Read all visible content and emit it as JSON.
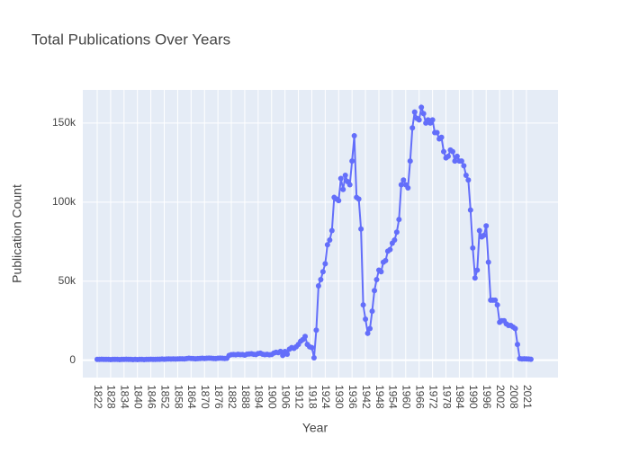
{
  "chart_data": {
    "type": "line",
    "title": "Total Publications Over Years",
    "x_label": "Year",
    "y_label": "Publication Count",
    "categories": [
      "1822",
      null,
      null,
      null,
      null,
      null,
      "1828",
      null,
      null,
      null,
      null,
      null,
      "1834",
      null,
      null,
      null,
      null,
      null,
      "1840",
      null,
      null,
      null,
      null,
      null,
      "1846",
      null,
      null,
      null,
      null,
      null,
      "1852",
      null,
      null,
      null,
      null,
      null,
      "1858",
      null,
      null,
      null,
      null,
      null,
      "1864",
      null,
      null,
      null,
      null,
      null,
      "1870",
      null,
      null,
      null,
      null,
      null,
      "1876",
      null,
      null,
      null,
      null,
      null,
      "1882",
      null,
      null,
      null,
      null,
      null,
      "1888",
      null,
      null,
      null,
      null,
      null,
      "1894",
      null,
      null,
      null,
      null,
      null,
      "1900",
      null,
      null,
      null,
      null,
      null,
      "1906",
      null,
      null,
      null,
      null,
      null,
      "1912",
      null,
      null,
      null,
      null,
      null,
      "1918",
      null,
      null,
      null,
      null,
      null,
      "1924",
      null,
      null,
      null,
      null,
      null,
      "1930",
      null,
      null,
      null,
      null,
      null,
      "1936",
      null,
      null,
      null,
      null,
      null,
      "1942",
      null,
      null,
      null,
      null,
      null,
      "1948",
      null,
      null,
      null,
      null,
      null,
      "1954",
      null,
      null,
      null,
      null,
      null,
      "1960",
      null,
      null,
      null,
      null,
      null,
      "1966",
      null,
      null,
      null,
      null,
      null,
      "1972",
      null,
      null,
      null,
      null,
      null,
      "1978",
      null,
      null,
      null,
      null,
      null,
      "1984",
      null,
      null,
      null,
      null,
      null,
      "1990",
      null,
      null,
      null,
      null,
      null,
      "1996",
      null,
      null,
      null,
      null,
      null,
      "2002",
      null,
      null,
      null,
      null,
      null,
      "2008",
      null,
      null,
      null,
      null,
      null,
      "2021",
      null,
      null
    ],
    "values": [
      500,
      500,
      600,
      500,
      500,
      500,
      400,
      500,
      500,
      500,
      400,
      500,
      500,
      600,
      500,
      500,
      400,
      500,
      400,
      500,
      500,
      400,
      500,
      500,
      600,
      500,
      500,
      600,
      600,
      700,
      600,
      700,
      800,
      700,
      800,
      700,
      800,
      900,
      900,
      800,
      1000,
      1200,
      1100,
      1000,
      900,
      1000,
      1100,
      1200,
      1100,
      1200,
      1300,
      1200,
      1100,
      1000,
      1200,
      1300,
      1200,
      1100,
      1200,
      3000,
      3500,
      3600,
      3400,
      3700,
      3500,
      3600,
      3200,
      3800,
      3900,
      4100,
      3700,
      3600,
      4200,
      4400,
      3800,
      3500,
      3700,
      3400,
      3600,
      4500,
      5000,
      4800,
      5600,
      3000,
      5500,
      3800,
      7000,
      8000,
      7500,
      8500,
      10000,
      12000,
      13000,
      15000,
      10000,
      8500,
      8000,
      1500,
      19000,
      47000,
      51000,
      56000,
      61000,
      73000,
      76000,
      82000,
      103000,
      102000,
      101000,
      115000,
      108000,
      117000,
      113000,
      111000,
      126000,
      142000,
      103000,
      102000,
      83000,
      35000,
      26000,
      17000,
      20000,
      31000,
      44000,
      51000,
      57000,
      56000,
      62000,
      63000,
      69000,
      70000,
      74000,
      76000,
      81000,
      89000,
      111000,
      114000,
      111000,
      109000,
      126000,
      147000,
      157000,
      153000,
      152000,
      160000,
      156000,
      150000,
      152000,
      150000,
      152000,
      144000,
      144000,
      140000,
      141000,
      132000,
      128000,
      129000,
      133000,
      132000,
      126000,
      129000,
      126000,
      126000,
      123000,
      117000,
      114000,
      95000,
      71000,
      52000,
      57000,
      82000,
      78000,
      79000,
      85000,
      62000,
      38000,
      38000,
      38000,
      35000,
      24000,
      25000,
      25000,
      23000,
      22000,
      22000,
      21000,
      20000,
      10000,
      1000,
      800,
      900,
      800,
      700,
      600
    ],
    "color": "#636efa",
    "ylim": [
      -11000,
      171000
    ],
    "yticks": [
      0,
      {
        "value": 50000,
        "label": "50k"
      },
      {
        "value": 100000,
        "label": "100k"
      },
      {
        "value": 150000,
        "label": "150k"
      }
    ],
    "grid": true
  }
}
